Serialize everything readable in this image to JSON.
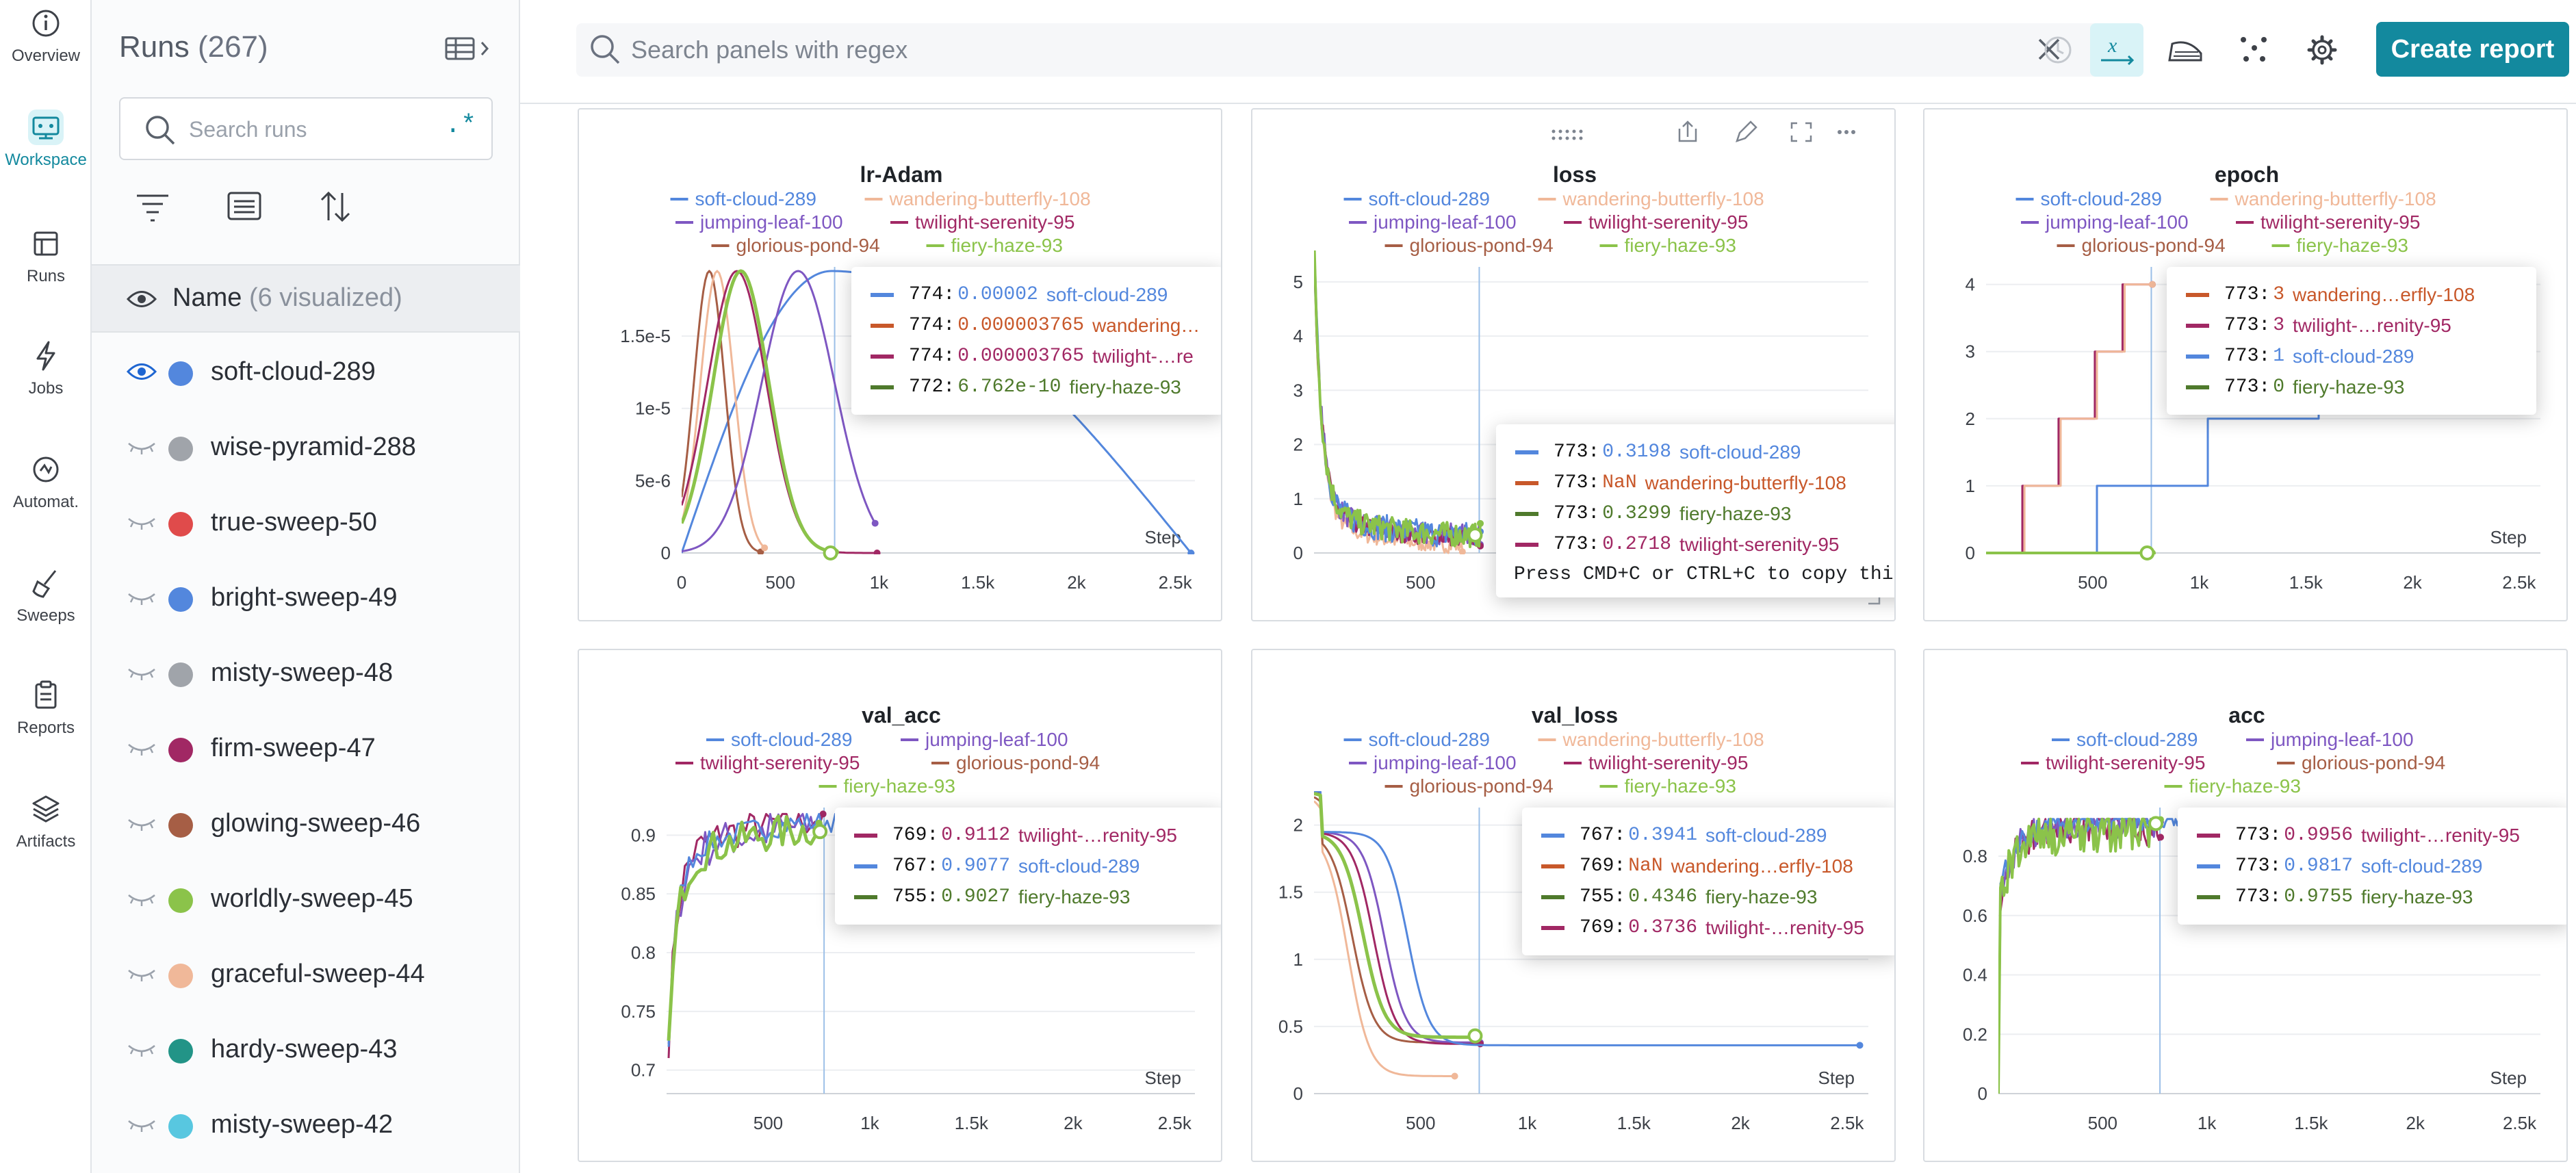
{
  "nav": {
    "items": [
      {
        "label": "Overview",
        "icon": "info-icon"
      },
      {
        "label": "Workspace",
        "icon": "workspace-icon",
        "active": true
      },
      {
        "label": "Runs",
        "icon": "table-icon"
      },
      {
        "label": "Jobs",
        "icon": "lightning-icon"
      },
      {
        "label": "Automat.",
        "icon": "automation-icon"
      },
      {
        "label": "Sweeps",
        "icon": "broom-icon"
      },
      {
        "label": "Reports",
        "icon": "clipboard-icon"
      },
      {
        "label": "Artifacts",
        "icon": "layers-icon"
      }
    ]
  },
  "runs": {
    "title": "Runs",
    "count": "(267)",
    "search_placeholder": "Search runs",
    "regex_label": ".*",
    "name_header": "Name",
    "name_sub": "(6 visualized)",
    "rows": [
      {
        "name": "soft-cloud-289",
        "color": "#5387dd",
        "visible": true
      },
      {
        "name": "wise-pyramid-288",
        "color": "#a0a4aa",
        "visible": false
      },
      {
        "name": "true-sweep-50",
        "color": "#e04b4b",
        "visible": false
      },
      {
        "name": "bright-sweep-49",
        "color": "#5387dd",
        "visible": false
      },
      {
        "name": "misty-sweep-48",
        "color": "#a0a4aa",
        "visible": false
      },
      {
        "name": "firm-sweep-47",
        "color": "#a12864",
        "visible": false
      },
      {
        "name": "glowing-sweep-46",
        "color": "#a65e45",
        "visible": false
      },
      {
        "name": "worldly-sweep-45",
        "color": "#8bc34a",
        "visible": false
      },
      {
        "name": "graceful-sweep-44",
        "color": "#f0b899",
        "visible": false
      },
      {
        "name": "hardy-sweep-43",
        "color": "#229487",
        "visible": false
      },
      {
        "name": "misty-sweep-42",
        "color": "#58c7e0",
        "visible": false
      }
    ]
  },
  "topbar": {
    "search_placeholder": "Search panels with regex",
    "create_report": "Create report"
  },
  "series_colors": {
    "soft-cloud-289": "#5387dd",
    "wandering-butterfly-108": "#f0b899",
    "jumping-leaf-100": "#7e57c2",
    "twilight-serenity-95": "#a12864",
    "glorious-pond-94": "#a65e45",
    "fiery-haze-93": "#8bc34a"
  },
  "panels": [
    {
      "id": "lr-adam",
      "title": "lr-Adam",
      "legend": [
        [
          "soft-cloud-289",
          "wandering-butterfly-108"
        ],
        [
          "jumping-leaf-100",
          "twilight-serenity-95"
        ],
        [
          "glorious-pond-94",
          "fiery-haze-93"
        ]
      ],
      "x_label": "Step",
      "x_ticks": [
        "0",
        "500",
        "1k",
        "1.5k",
        "2k",
        "2.5k"
      ],
      "y_ticks": [
        "0",
        "5e-6",
        "1e-5",
        "1.5e-5"
      ],
      "tooltip": [
        {
          "step": "774:",
          "value": "0.00002",
          "run": "soft-cloud-289",
          "color": "#5387dd"
        },
        {
          "step": "774:",
          "value": "0.000003765",
          "run": "wandering…",
          "color": "#c8582a"
        },
        {
          "step": "774:",
          "value": "0.000003765",
          "run": "twilight-…re",
          "color": "#a12864"
        },
        {
          "step": "772:",
          "value": "6.762e-10",
          "run": "fiery-haze-93",
          "color": "#4f7a2c"
        }
      ]
    },
    {
      "id": "loss",
      "title": "loss",
      "legend": [
        [
          "soft-cloud-289",
          "wandering-butterfly-108"
        ],
        [
          "jumping-leaf-100",
          "twilight-serenity-95"
        ],
        [
          "glorious-pond-94",
          "fiery-haze-93"
        ]
      ],
      "x_label": "",
      "x_ticks": [
        "500"
      ],
      "y_ticks": [
        "0",
        "1",
        "2",
        "3",
        "4",
        "5"
      ],
      "tooltip": [
        {
          "step": "773:",
          "value": "0.3198",
          "run": "soft-cloud-289",
          "color": "#5387dd"
        },
        {
          "step": "773:",
          "value": "NaN",
          "run": "wandering-butterfly-108",
          "color": "#c8582a"
        },
        {
          "step": "773:",
          "value": "0.3299",
          "run": "fiery-haze-93",
          "color": "#4f7a2c"
        },
        {
          "step": "773:",
          "value": "0.2718",
          "run": "twilight-serenity-95",
          "color": "#a12864"
        }
      ],
      "tooltip_footer": "Press CMD+C or CTRL+C to copy this data"
    },
    {
      "id": "epoch",
      "title": "epoch",
      "legend": [
        [
          "soft-cloud-289",
          "wandering-butterfly-108"
        ],
        [
          "jumping-leaf-100",
          "twilight-serenity-95"
        ],
        [
          "glorious-pond-94",
          "fiery-haze-93"
        ]
      ],
      "x_label": "Step",
      "x_ticks": [
        "500",
        "1k",
        "1.5k",
        "2k",
        "2.5k"
      ],
      "y_ticks": [
        "0",
        "1",
        "2",
        "3",
        "4"
      ],
      "tooltip": [
        {
          "step": "773:",
          "value": "3",
          "run": "wandering…erfly-108",
          "color": "#c8582a"
        },
        {
          "step": "773:",
          "value": "3",
          "run": "twilight-…renity-95",
          "color": "#a12864"
        },
        {
          "step": "773:",
          "value": "1",
          "run": "soft-cloud-289",
          "color": "#5387dd"
        },
        {
          "step": "773:",
          "value": "0",
          "run": "fiery-haze-93",
          "color": "#4f7a2c"
        }
      ]
    },
    {
      "id": "val-acc",
      "title": "val_acc",
      "legend": [
        [
          "soft-cloud-289",
          "jumping-leaf-100"
        ],
        [
          "twilight-serenity-95",
          "glorious-pond-94"
        ],
        [
          "fiery-haze-93"
        ]
      ],
      "x_label": "Step",
      "x_ticks": [
        "500",
        "1k",
        "1.5k",
        "2k",
        "2.5k"
      ],
      "y_ticks": [
        "0.7",
        "0.75",
        "0.8",
        "0.85",
        "0.9"
      ],
      "tooltip": [
        {
          "step": "769:",
          "value": "0.9112",
          "run": "twilight-…renity-95",
          "color": "#a12864"
        },
        {
          "step": "767:",
          "value": "0.9077",
          "run": "soft-cloud-289",
          "color": "#5387dd"
        },
        {
          "step": "755:",
          "value": "0.9027",
          "run": "fiery-haze-93",
          "color": "#4f7a2c"
        }
      ]
    },
    {
      "id": "val-loss",
      "title": "val_loss",
      "legend": [
        [
          "soft-cloud-289",
          "wandering-butterfly-108"
        ],
        [
          "jumping-leaf-100",
          "twilight-serenity-95"
        ],
        [
          "glorious-pond-94",
          "fiery-haze-93"
        ]
      ],
      "x_label": "Step",
      "x_ticks": [
        "500",
        "1k",
        "1.5k",
        "2k",
        "2.5k"
      ],
      "y_ticks": [
        "0",
        "0.5",
        "1",
        "1.5",
        "2"
      ],
      "tooltip": [
        {
          "step": "767:",
          "value": "0.3941",
          "run": "soft-cloud-289",
          "color": "#5387dd"
        },
        {
          "step": "769:",
          "value": "NaN",
          "run": "wandering…erfly-108",
          "color": "#c8582a"
        },
        {
          "step": "755:",
          "value": "0.4346",
          "run": "fiery-haze-93",
          "color": "#4f7a2c"
        },
        {
          "step": "769:",
          "value": "0.3736",
          "run": "twilight-…renity-95",
          "color": "#a12864"
        }
      ]
    },
    {
      "id": "acc",
      "title": "acc",
      "legend": [
        [
          "soft-cloud-289",
          "jumping-leaf-100"
        ],
        [
          "twilight-serenity-95",
          "glorious-pond-94"
        ],
        [
          "fiery-haze-93"
        ]
      ],
      "x_label": "Step",
      "x_ticks": [
        "500",
        "1k",
        "1.5k",
        "2k",
        "2.5k"
      ],
      "y_ticks": [
        "0",
        "0.2",
        "0.4",
        "0.6",
        "0.8"
      ],
      "tooltip": [
        {
          "step": "773:",
          "value": "0.9956",
          "run": "twilight-…renity-95",
          "color": "#a12864"
        },
        {
          "step": "773:",
          "value": "0.9817",
          "run": "soft-cloud-289",
          "color": "#5387dd"
        },
        {
          "step": "773:",
          "value": "0.9755",
          "run": "fiery-haze-93",
          "color": "#4f7a2c"
        }
      ]
    }
  ]
}
